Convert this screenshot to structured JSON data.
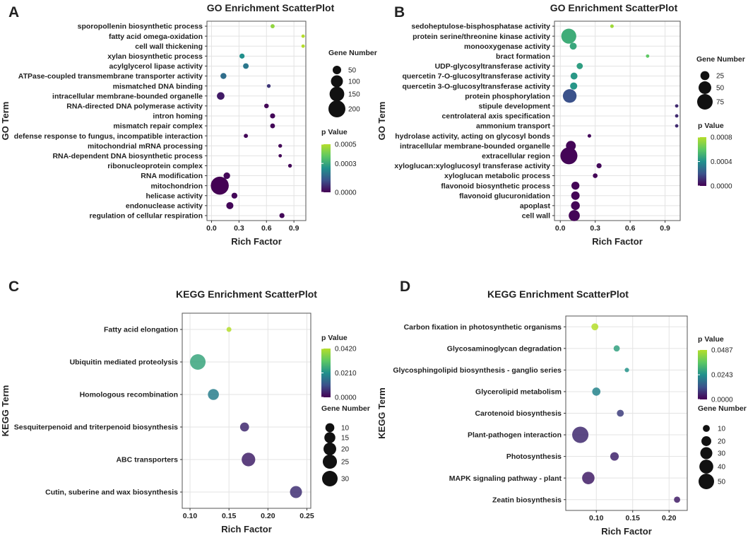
{
  "figure": {
    "panels": [
      {
        "letter": "A"
      },
      {
        "letter": "B"
      },
      {
        "letter": "C"
      },
      {
        "letter": "D"
      }
    ]
  },
  "chart_data": [
    {
      "panel": "A",
      "type": "scatter",
      "title": "GO Enrichment ScatterPlot",
      "xlabel": "Rich Factor",
      "ylabel": "GO Term",
      "xlim": [
        -0.05,
        1.03
      ],
      "xticks": [
        0.0,
        0.3,
        0.6,
        0.9
      ],
      "xtick_labels": [
        "0.0",
        "0.3",
        "0.6",
        "0.9"
      ],
      "categories": [
        "sporopollenin biosynthetic process",
        "fatty acid omega-oxidation",
        "cell wall thickening",
        "xylan biosynthetic process",
        "acylglycerol lipase activity",
        "ATPase-coupled transmembrane transporter activity",
        "mismatched DNA binding",
        "intracellular membrane-bounded organelle",
        "RNA-directed DNA polymerase activity",
        "intron homing",
        "mismatch repair complex",
        "defense response to fungus, incompatible interaction",
        "mitochondrial mRNA processing",
        "RNA-dependent DNA biosynthetic process",
        "ribonucleoprotein complex",
        "RNA modification",
        "mitochondrion",
        "helicase activity",
        "endonuclease activity",
        "regulation of cellular respiration"
      ],
      "x": [
        0.667,
        1.0,
        1.0,
        0.333,
        0.375,
        0.13,
        0.625,
        0.1,
        0.6,
        0.667,
        0.667,
        0.375,
        0.75,
        0.75,
        0.857,
        0.167,
        0.09,
        0.25,
        0.2,
        0.769
      ],
      "size": [
        12,
        8,
        8,
        18,
        22,
        25,
        10,
        40,
        15,
        18,
        16,
        12,
        10,
        8,
        10,
        30,
        225,
        24,
        35,
        18
      ],
      "pvalue": [
        0.00045,
        0.0005,
        0.0005,
        0.00025,
        0.0002,
        0.00018,
        8e-05,
        4e-05,
        1e-05,
        1e-05,
        1e-05,
        1e-05,
        1e-05,
        1e-05,
        1e-05,
        1e-05,
        1e-06,
        1e-05,
        1e-05,
        1e-05
      ],
      "legend_size": {
        "title": "Gene Number",
        "values": [
          50,
          100,
          150,
          200
        ]
      },
      "legend_color": {
        "title": "p Value",
        "min": 0,
        "max": 0.0005,
        "ticks": [
          0.0005,
          0.0003,
          0.0
        ],
        "tick_labels": [
          "0.0005",
          "0.0003",
          "0.0000"
        ]
      }
    },
    {
      "panel": "B",
      "type": "scatter",
      "title": "GO Enrichment ScatterPlot",
      "xlabel": "Rich Factor",
      "ylabel": "GO Term",
      "xlim": [
        -0.05,
        1.03
      ],
      "xticks": [
        0.0,
        0.3,
        0.6,
        0.9
      ],
      "xtick_labels": [
        "0.0",
        "0.3",
        "0.6",
        "0.9"
      ],
      "categories": [
        "sedoheptulose-bisphosphatase activity",
        "protein serine/threonine kinase activity",
        "monooxygenase activity",
        "bract formation",
        "UDP-glycosyltransferase activity",
        "quercetin 7-O-glucosyltransferase activity",
        "quercetin 3-O-glucosyltransferase activity",
        "protein phosphorylation",
        "stipule development",
        "centrolateral axis specification",
        "ammonium transport",
        "hydrolase activity, acting on glycosyl bonds",
        "intracellular membrane-bounded organelle",
        "extracellular region",
        "xyloglucan:xyloglucosyl transferase activity",
        "xyloglucan metabolic process",
        "flavonoid biosynthetic process",
        "flavonoid glucuronidation",
        "apoplast",
        "cell wall"
      ],
      "x": [
        0.444,
        0.073,
        0.111,
        0.75,
        0.167,
        0.118,
        0.115,
        0.081,
        1.0,
        1.0,
        1.0,
        0.25,
        0.091,
        0.074,
        0.333,
        0.3,
        0.13,
        0.13,
        0.13,
        0.12
      ],
      "size": [
        4,
        70,
        15,
        3,
        12,
        15,
        16,
        58,
        2,
        2,
        2,
        4,
        30,
        90,
        8,
        7,
        20,
        22,
        24,
        38
      ],
      "pvalue": [
        0.00075,
        0.0005,
        0.00048,
        0.0006,
        0.00045,
        0.00043,
        0.00042,
        0.0002,
        0.0001,
        0.0001,
        0.0001,
        2e-05,
        1e-05,
        1e-05,
        2e-05,
        1e-05,
        1e-05,
        1e-05,
        1e-05,
        1e-05
      ],
      "legend_size": {
        "title": "Gene Number",
        "values": [
          25,
          50,
          75
        ]
      },
      "legend_color": {
        "title": "p Value",
        "min": 0,
        "max": 0.0008,
        "ticks": [
          0.0008,
          0.0004,
          0.0
        ],
        "tick_labels": [
          "0.0008",
          "0.0004",
          "0.0000"
        ]
      }
    },
    {
      "panel": "C",
      "type": "scatter",
      "title": "KEGG Enrichment ScatterPlot",
      "xlabel": "Rich Factor",
      "ylabel": "KEGG Term",
      "xlim": [
        0.09,
        0.255
      ],
      "xticks": [
        0.1,
        0.15,
        0.2,
        0.25
      ],
      "xtick_labels": [
        "0.10",
        "0.15",
        "0.20",
        "0.25"
      ],
      "categories": [
        "Fatty acid elongation",
        "Ubiquitin mediated proteolysis",
        "Homologous recombination",
        "Sesquiterpenoid and triterpenoid biosynthesis",
        "ABC transporters",
        "Cutin, suberine and wax biosynthesis"
      ],
      "x": [
        0.15,
        0.11,
        0.13,
        0.17,
        0.175,
        0.236
      ],
      "size": [
        3,
        30,
        15,
        10,
        23,
        18
      ],
      "pvalue": [
        0.042,
        0.025,
        0.018,
        0.005,
        0.004,
        0.006
      ],
      "legend_size": {
        "title": "Gene Number",
        "values": [
          10,
          15,
          20,
          25,
          30
        ]
      },
      "legend_color": {
        "title": "p Value",
        "min": 0,
        "max": 0.042,
        "ticks": [
          0.042,
          0.021,
          0.0
        ],
        "tick_labels": [
          "0.0420",
          "0.0210",
          "0.0000"
        ]
      }
    },
    {
      "panel": "D",
      "type": "scatter",
      "title": "KEGG Enrichment ScatterPlot",
      "xlabel": "Rich Factor",
      "ylabel": "KEGG Term",
      "xlim": [
        0.058,
        0.225
      ],
      "xticks": [
        0.1,
        0.15,
        0.2
      ],
      "xtick_labels": [
        "0.10",
        "0.15",
        "0.20"
      ],
      "categories": [
        "Carbon fixation in photosynthetic organisms",
        "Glycosaminoglycan degradation",
        "Glycosphingolipid biosynthesis - ganglio series",
        "Glycerolipid metabolism",
        "Carotenoid biosynthesis",
        "Plant-pathogen interaction",
        "Photosynthesis",
        "MAPK signaling pathway - plant",
        "Zeatin biosynthesis"
      ],
      "x": [
        0.098,
        0.128,
        0.142,
        0.1,
        0.133,
        0.078,
        0.125,
        0.089,
        0.211
      ],
      "size": [
        10,
        8,
        4,
        14,
        10,
        55,
        15,
        32,
        8
      ],
      "pvalue": [
        0.0487,
        0.028,
        0.025,
        0.022,
        0.009,
        0.006,
        0.005,
        0.004,
        0.004
      ],
      "legend_color": {
        "title": "p Value",
        "min": 0,
        "max": 0.0487,
        "ticks": [
          0.0487,
          0.0243,
          0.0
        ],
        "tick_labels": [
          "0.0487",
          "0.0243",
          "0.0000"
        ]
      },
      "legend_size": {
        "title": "Gene Number",
        "values": [
          10,
          20,
          30,
          40,
          50
        ]
      }
    }
  ]
}
